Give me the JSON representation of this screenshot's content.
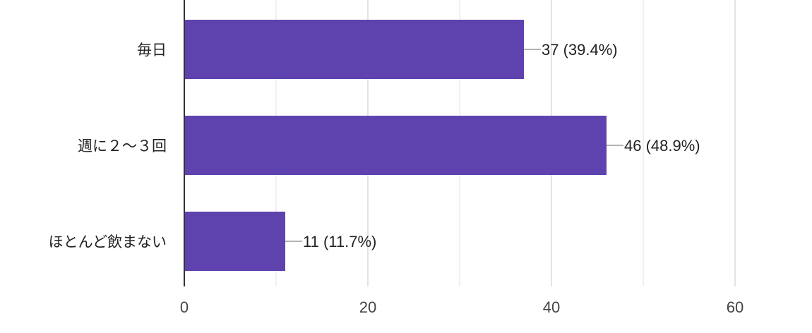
{
  "chart_data": {
    "type": "bar",
    "orientation": "horizontal",
    "categories": [
      "毎日",
      "週に２〜３回",
      "ほとんど飲まない"
    ],
    "values": [
      37,
      46,
      11
    ],
    "percentages": [
      "39.4%",
      "48.9%",
      "11.7%"
    ],
    "data_labels": [
      "37 (39.4%)",
      "46 (48.9%)",
      "11 (11.7%)"
    ],
    "xlim": [
      0,
      60
    ],
    "xticks": [
      "0",
      "20",
      "40",
      "60"
    ],
    "grid": true,
    "bar_color": "#5e43ae",
    "title": "",
    "xlabel": "",
    "ylabel": ""
  }
}
